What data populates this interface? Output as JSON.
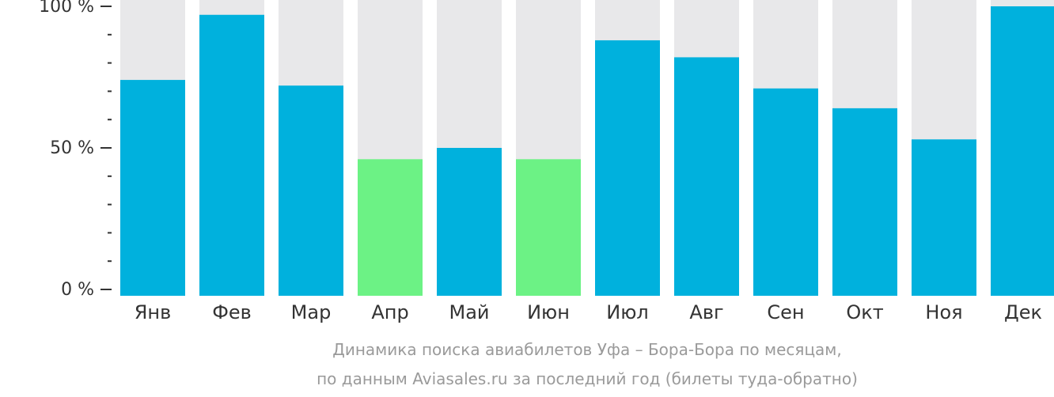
{
  "chart_data": {
    "type": "bar",
    "categories": [
      "Янв",
      "Фев",
      "Мар",
      "Апр",
      "Май",
      "Июн",
      "Июл",
      "Авг",
      "Сен",
      "Окт",
      "Ноя",
      "Дек"
    ],
    "values": [
      74,
      97,
      72,
      46,
      50,
      46,
      88,
      82,
      71,
      64,
      53,
      100
    ],
    "ylim": [
      0,
      100
    ],
    "yticks": [
      {
        "value": 0,
        "label": "0 %"
      },
      {
        "value": 50,
        "label": "50 %"
      },
      {
        "value": 100,
        "label": "100 %"
      }
    ],
    "minor_tick_step": 10,
    "highlight_categories": [
      "Апр",
      "Июн"
    ],
    "grid": false,
    "colors": {
      "bar": "#00b1dd",
      "highlight": "#6cf285",
      "track": "#e8e8ea",
      "axis": "#333333",
      "label": "#333333",
      "caption": "#9a9a9a"
    },
    "caption_lines": [
      "Динамика поиска авиабилетов Уфа – Бора-Бора по месяцам,",
      "по данным Aviasales.ru за последний год (билеты туда-обратно)"
    ]
  }
}
